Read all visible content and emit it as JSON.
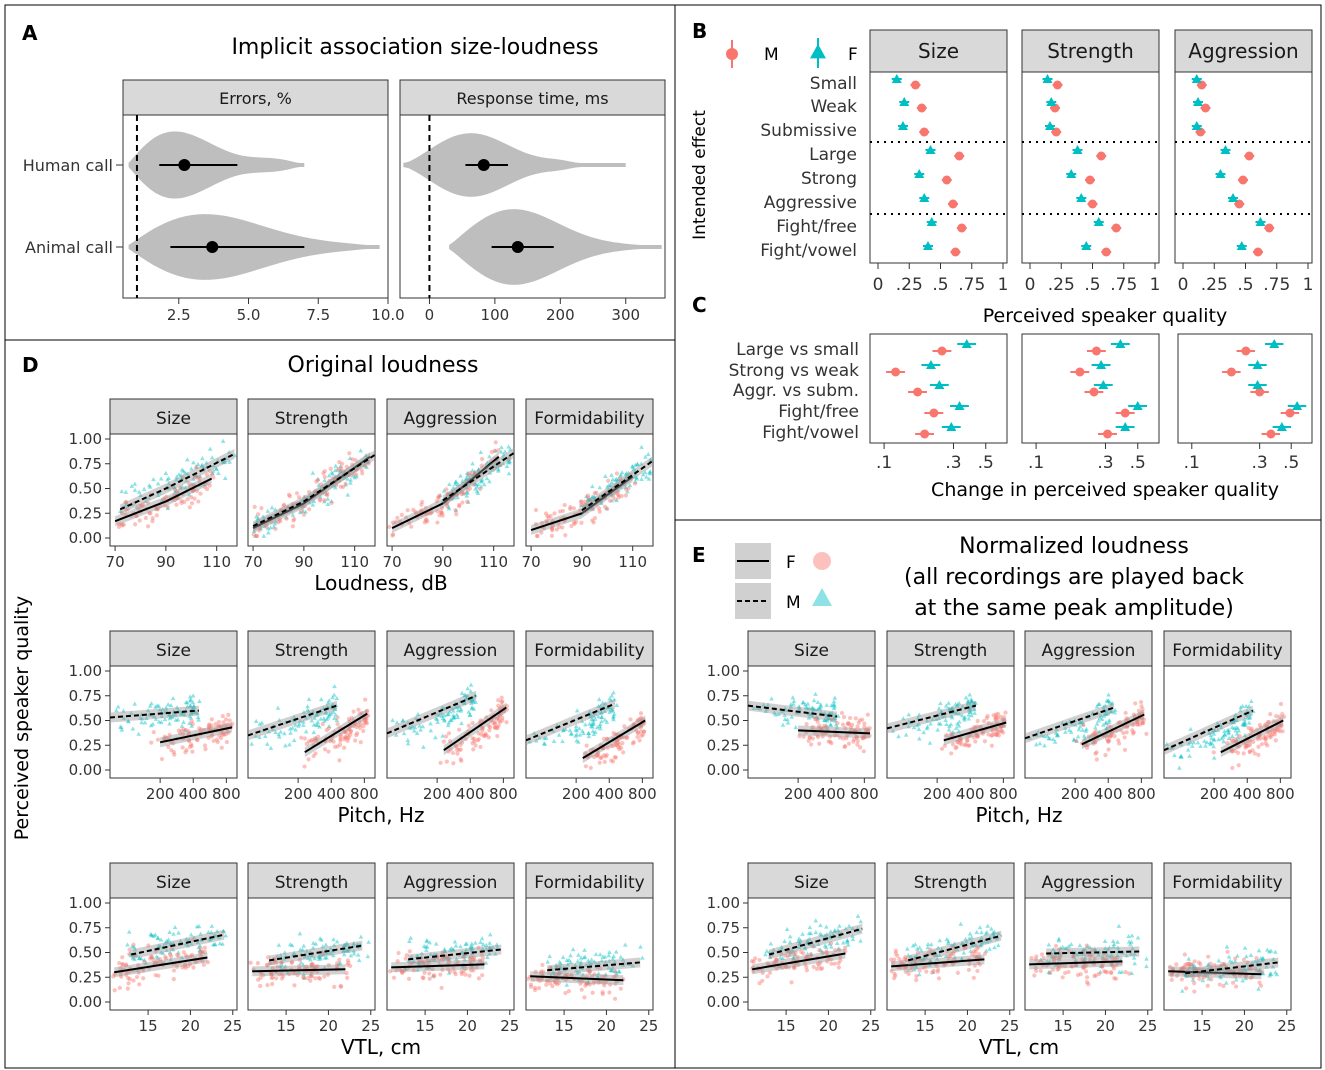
{
  "panel_labels": {
    "A": "A",
    "B": "B",
    "C": "C",
    "D": "D",
    "E": "E"
  },
  "panel_a": {
    "title": "Implicit association size-loudness",
    "facets": [
      "Errors, %",
      "Response time, ms"
    ],
    "rows": [
      "Human call",
      "Animal call"
    ],
    "errors_ticks": [
      "2.5",
      "5.0",
      "7.5",
      "10.0"
    ],
    "rt_ticks": [
      "0",
      "100",
      "200",
      "300"
    ]
  },
  "panel_b": {
    "legend": {
      "M": "M",
      "F": "F"
    },
    "facets": [
      "Size",
      "Strength",
      "Aggression"
    ],
    "categories": [
      "Small",
      "Weak",
      "Submissive",
      "Large",
      "Strong",
      "Aggressive",
      "Fight/free",
      "Fight/vowel"
    ],
    "ylabel": "Intended effect",
    "xlabel": "Perceived speaker quality",
    "ticks": [
      "0",
      ".25",
      ".5",
      ".75",
      "1"
    ]
  },
  "panel_c": {
    "categories": [
      "Large vs small",
      "Strong vs weak",
      "Aggr. vs subm.",
      "Fight/free",
      "Fight/vowel"
    ],
    "xlabel": "Change in perceived speaker quality",
    "ticks": [
      ".1",
      ".3",
      ".5"
    ]
  },
  "panel_d": {
    "title": "Original loudness",
    "facets": [
      "Size",
      "Strength",
      "Aggression",
      "Formidability"
    ],
    "ylabel": "Perceived speaker quality",
    "yticks": [
      "1.00",
      "0.75",
      "0.50",
      "0.25",
      "0.00"
    ],
    "rows": [
      {
        "xlabel": "Loudness, dB",
        "xticks": [
          "70",
          "90",
          "110"
        ]
      },
      {
        "xlabel": "Pitch, Hz",
        "xticks": [
          "200",
          "400",
          "800"
        ]
      },
      {
        "xlabel": "VTL, cm",
        "xticks": [
          "15",
          "20",
          "25"
        ]
      }
    ]
  },
  "panel_e": {
    "title_lines": [
      "Normalized loudness",
      "(all recordings are played back",
      "at the same peak amplitude)"
    ],
    "legend": {
      "F": "F",
      "M": "M"
    },
    "facets": [
      "Size",
      "Strength",
      "Aggression",
      "Formidability"
    ],
    "yticks": [
      "1.00",
      "0.75",
      "0.50",
      "0.25",
      "0.00"
    ],
    "rows": [
      {
        "xlabel": "Pitch, Hz",
        "xticks": [
          "200",
          "400",
          "800"
        ]
      },
      {
        "xlabel": "VTL, cm",
        "xticks": [
          "15",
          "20",
          "25"
        ]
      }
    ]
  },
  "colors": {
    "female": "#F8766D",
    "male": "#00BFC4",
    "strip": "#D9D9D9",
    "violin": "#BEBEBE"
  },
  "chart_data": [
    {
      "type": "violin",
      "panel": "A",
      "facet": "Errors, %",
      "series": [
        {
          "name": "Human call",
          "mean": 2.7,
          "ci": [
            1.8,
            4.6
          ]
        },
        {
          "name": "Animal call",
          "mean": 3.7,
          "ci": [
            2.2,
            7.0
          ]
        }
      ],
      "xlim": [
        0.5,
        10.0
      ],
      "reference_line": 1.0
    },
    {
      "type": "violin",
      "panel": "A",
      "facet": "Response time, ms",
      "series": [
        {
          "name": "Human call",
          "mean": 83,
          "ci": [
            55,
            120
          ]
        },
        {
          "name": "Animal call",
          "mean": 135,
          "ci": [
            95,
            190
          ]
        }
      ],
      "xlim": [
        -45,
        360
      ],
      "reference_line": 0
    },
    {
      "type": "scatter",
      "panel": "B",
      "xlabel": "Perceived speaker quality",
      "ylabel": "Intended effect",
      "xlim": [
        0,
        1
      ],
      "categories": [
        "Small",
        "Weak",
        "Submissive",
        "Large",
        "Strong",
        "Aggressive",
        "Fight/free",
        "Fight/vowel"
      ],
      "facets": [
        {
          "name": "Size",
          "series": [
            {
              "name": "M",
              "values": [
                0.3,
                0.35,
                0.37,
                0.65,
                0.55,
                0.6,
                0.67,
                0.62
              ]
            },
            {
              "name": "F",
              "values": [
                0.15,
                0.21,
                0.2,
                0.42,
                0.33,
                0.37,
                0.43,
                0.4
              ]
            }
          ]
        },
        {
          "name": "Strength",
          "series": [
            {
              "name": "M",
              "values": [
                0.22,
                0.2,
                0.21,
                0.57,
                0.48,
                0.5,
                0.69,
                0.61
              ]
            },
            {
              "name": "F",
              "values": [
                0.14,
                0.17,
                0.16,
                0.38,
                0.33,
                0.41,
                0.55,
                0.45
              ]
            }
          ]
        },
        {
          "name": "Aggression",
          "series": [
            {
              "name": "M",
              "values": [
                0.15,
                0.18,
                0.14,
                0.53,
                0.48,
                0.45,
                0.69,
                0.6
              ]
            },
            {
              "name": "F",
              "values": [
                0.11,
                0.12,
                0.11,
                0.34,
                0.3,
                0.4,
                0.62,
                0.47
              ]
            }
          ]
        }
      ]
    },
    {
      "type": "scatter",
      "panel": "C",
      "xlabel": "Change in perceived speaker quality",
      "categories": [
        "Large vs small",
        "Strong vs weak",
        "Aggr. vs subm.",
        "Fight/free",
        "Fight/vowel"
      ],
      "facets": [
        {
          "series": [
            {
              "name": "M",
              "values": [
                0.25,
                0.12,
                0.17,
                0.22,
                0.19
              ]
            },
            {
              "name": "F",
              "values": [
                0.37,
                0.21,
                0.24,
                0.33,
                0.29
              ]
            }
          ]
        },
        {
          "series": [
            {
              "name": "M",
              "values": [
                0.26,
                0.2,
                0.25,
                0.41,
                0.31
              ]
            },
            {
              "name": "F",
              "values": [
                0.38,
                0.28,
                0.29,
                0.5,
                0.41
              ]
            }
          ]
        },
        {
          "series": [
            {
              "name": "M",
              "values": [
                0.24,
                0.19,
                0.3,
                0.49,
                0.36
              ]
            },
            {
              "name": "F",
              "values": [
                0.38,
                0.29,
                0.29,
                0.55,
                0.43
              ]
            }
          ]
        }
      ]
    },
    {
      "type": "scatter",
      "panel": "D",
      "note": "loess/linear fit lines (F solid, M dashed) over raw points",
      "rows": [
        {
          "x": "Loudness, dB",
          "xlim": [
            68,
            118
          ],
          "fits": {
            "Size": {
              "F": [
                [
                  70,
                  0.17
                ],
                [
                  90,
                  0.37
                ],
                [
                  108,
                  0.6
                ]
              ],
              "M": [
                [
                  72,
                  0.29
                ],
                [
                  90,
                  0.5
                ],
                [
                  117,
                  0.85
                ]
              ]
            },
            "Strength": {
              "F": [
                [
                  70,
                  0.1
                ],
                [
                  90,
                  0.35
                ],
                [
                  116,
                  0.82
                ]
              ],
              "M": [
                [
                  70,
                  0.12
                ],
                [
                  90,
                  0.37
                ],
                [
                  118,
                  0.84
                ]
              ]
            },
            "Aggression": {
              "F": [
                [
                  70,
                  0.1
                ],
                [
                  90,
                  0.35
                ],
                [
                  112,
                  0.82
                ]
              ],
              "M": [
                [
                  90,
                  0.38
                ],
                [
                  118,
                  0.86
                ]
              ]
            },
            "Formidability": {
              "F": [
                [
                  70,
                  0.08
                ],
                [
                  90,
                  0.25
                ],
                [
                  110,
                  0.62
                ]
              ],
              "M": [
                [
                  90,
                  0.28
                ],
                [
                  118,
                  0.78
                ]
              ]
            }
          }
        },
        {
          "x": "Pitch, Hz",
          "xlim": [
            70,
            950
          ],
          "fits": {
            "Size": {
              "F": [
                [
                  200,
                  0.28
                ],
                [
                  900,
                  0.43
                ]
              ],
              "M": [
                [
                  70,
                  0.53
                ],
                [
                  450,
                  0.6
                ]
              ]
            },
            "Strength": {
              "F": [
                [
                  230,
                  0.18
                ],
                [
                  850,
                  0.57
                ]
              ],
              "M": [
                [
                  70,
                  0.35
                ],
                [
                  450,
                  0.65
                ]
              ]
            },
            "Aggression": {
              "F": [
                [
                  230,
                  0.2
                ],
                [
                  850,
                  0.63
                ]
              ],
              "M": [
                [
                  70,
                  0.37
                ],
                [
                  450,
                  0.75
                ]
              ]
            },
            "Formidability": {
              "F": [
                [
                  230,
                  0.12
                ],
                [
                  850,
                  0.5
                ]
              ],
              "M": [
                [
                  70,
                  0.3
                ],
                [
                  450,
                  0.67
                ]
              ]
            }
          }
        },
        {
          "x": "VTL, cm",
          "xlim": [
            11,
            25
          ],
          "fits": {
            "Size": {
              "F": [
                [
                  11,
                  0.3
                ],
                [
                  22,
                  0.45
                ]
              ],
              "M": [
                [
                  13,
                  0.48
                ],
                [
                  24,
                  0.68
                ]
              ]
            },
            "Strength": {
              "F": [
                [
                  11,
                  0.31
                ],
                [
                  22,
                  0.33
                ]
              ],
              "M": [
                [
                  13,
                  0.42
                ],
                [
                  24,
                  0.57
                ]
              ]
            },
            "Aggression": {
              "F": [
                [
                  11,
                  0.35
                ],
                [
                  22,
                  0.38
                ]
              ],
              "M": [
                [
                  13,
                  0.43
                ],
                [
                  24,
                  0.53
                ]
              ]
            },
            "Formidability": {
              "F": [
                [
                  11,
                  0.26
                ],
                [
                  22,
                  0.22
                ]
              ],
              "M": [
                [
                  13,
                  0.32
                ],
                [
                  24,
                  0.4
                ]
              ]
            }
          }
        }
      ],
      "ylim": [
        0,
        1
      ]
    },
    {
      "type": "scatter",
      "panel": "E",
      "rows": [
        {
          "x": "Pitch, Hz",
          "xlim": [
            70,
            950
          ],
          "fits": {
            "Size": {
              "F": [
                [
                  200,
                  0.4
                ],
                [
                  900,
                  0.37
                ]
              ],
              "M": [
                [
                  70,
                  0.65
                ],
                [
                  450,
                  0.54
                ]
              ]
            },
            "Strength": {
              "F": [
                [
                  230,
                  0.3
                ],
                [
                  850,
                  0.48
                ]
              ],
              "M": [
                [
                  70,
                  0.42
                ],
                [
                  450,
                  0.65
                ]
              ]
            },
            "Aggression": {
              "F": [
                [
                  230,
                  0.26
                ],
                [
                  850,
                  0.56
                ]
              ],
              "M": [
                [
                  70,
                  0.32
                ],
                [
                  450,
                  0.63
                ]
              ]
            },
            "Formidability": {
              "F": [
                [
                  230,
                  0.18
                ],
                [
                  850,
                  0.5
                ]
              ],
              "M": [
                [
                  70,
                  0.2
                ],
                [
                  450,
                  0.6
                ]
              ]
            }
          }
        },
        {
          "x": "VTL, cm",
          "xlim": [
            11,
            25
          ],
          "fits": {
            "Size": {
              "F": [
                [
                  11,
                  0.33
                ],
                [
                  22,
                  0.49
                ]
              ],
              "M": [
                [
                  13,
                  0.48
                ],
                [
                  24,
                  0.74
                ]
              ]
            },
            "Strength": {
              "F": [
                [
                  11,
                  0.36
                ],
                [
                  22,
                  0.43
                ]
              ],
              "M": [
                [
                  13,
                  0.42
                ],
                [
                  24,
                  0.67
                ]
              ]
            },
            "Aggression": {
              "F": [
                [
                  11,
                  0.38
                ],
                [
                  22,
                  0.41
                ]
              ],
              "M": [
                [
                  13,
                  0.49
                ],
                [
                  24,
                  0.51
                ]
              ]
            },
            "Formidability": {
              "F": [
                [
                  11,
                  0.31
                ],
                [
                  22,
                  0.28
                ]
              ],
              "M": [
                [
                  13,
                  0.29
                ],
                [
                  24,
                  0.4
                ]
              ]
            }
          }
        }
      ],
      "ylim": [
        0,
        1
      ]
    }
  ]
}
